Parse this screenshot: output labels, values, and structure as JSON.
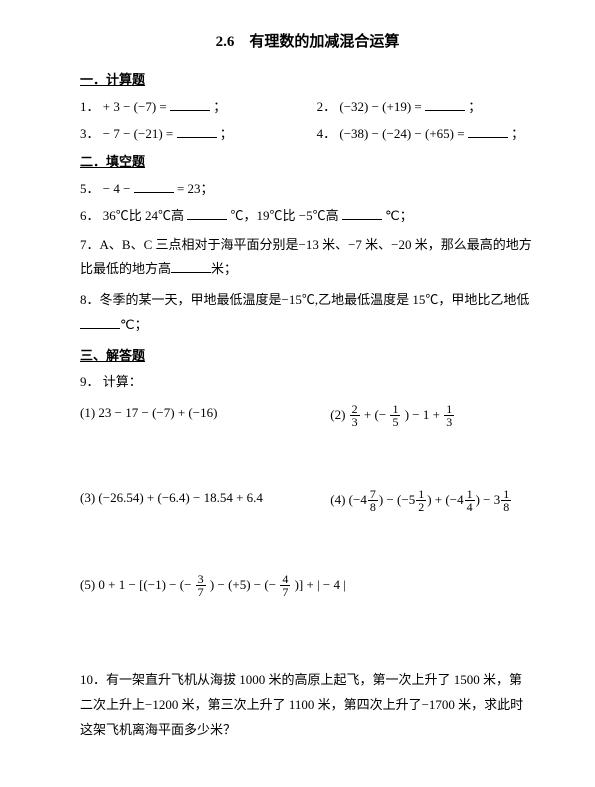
{
  "title": "2.6　有理数的加减混合运算",
  "sections": {
    "s1": "一．计算题",
    "s2": "二．填空题",
    "s3": "三、解答题"
  },
  "q1": {
    "num": "1．",
    "expr": "+ 3 − (−7) =",
    "tail": "；"
  },
  "q2": {
    "num": "2．",
    "expr": "(−32) − (+19) =",
    "tail": "；"
  },
  "q3": {
    "num": "3．",
    "expr": "− 7 − (−21) =",
    "tail": "；"
  },
  "q4": {
    "num": "4．",
    "expr": "(−38) − (−24) − (+65) =",
    "tail": "；"
  },
  "q5": {
    "num": "5．",
    "pre": "− 4 −",
    "post": " = 23；"
  },
  "q6": {
    "num": "6．",
    "a": "36℃比 24℃高",
    "b": "℃，19℃比 −5℃高",
    "c": "℃；"
  },
  "q7": {
    "num": "7．",
    "a": "A、B、C 三点相对于海平面分别是−13 米、−7 米、−20 米，那么最高的地方比最低的地方高",
    "b": "米；"
  },
  "q8": {
    "num": "8．",
    "a": "冬季的某一天，甲地最低温度是−15℃,乙地最低温度是 15℃，甲地比乙地低",
    "b": "℃；"
  },
  "q9": {
    "num": "9．",
    "label": "计算："
  },
  "p1": {
    "tag": "(1) ",
    "expr": "23 − 17 − (−7) + (−16)"
  },
  "p2": {
    "tag": "(2) "
  },
  "p3": {
    "tag": "(3) ",
    "expr": "(−26.54) + (−6.4) − 18.54 + 6.4"
  },
  "p4": {
    "tag": "(4) "
  },
  "p5": {
    "tag": "(5) "
  },
  "q10": {
    "num": "10．",
    "text": "有一架直升飞机从海拔 1000 米的高原上起飞，第一次上升了 1500 米，第二次上升上−1200 米，第三次上升了 1100 米，第四次上升了−1700 米，求此时这架飞机离海平面多少米？"
  },
  "frac": {
    "n2": "2",
    "n3": "3",
    "n1": "1",
    "n5": "5",
    "n7": "7",
    "n8": "8",
    "n4": "4"
  },
  "sym": {
    "plus": " + ",
    "minus": " − ",
    "lpar": "(−",
    "rpar": ")",
    "absL": "|",
    "absR": "|",
    "neg4": "− 4",
    "zero1": "0 + 1 − [(−1) − (−",
    "mid1": ") − (+5) − (−",
    "mid2": ")] + "
  },
  "mixed": {
    "m4_7_8": "4",
    "m5_1_2": "5",
    "m4_1_4": "4",
    "m3_1_8": "3"
  }
}
